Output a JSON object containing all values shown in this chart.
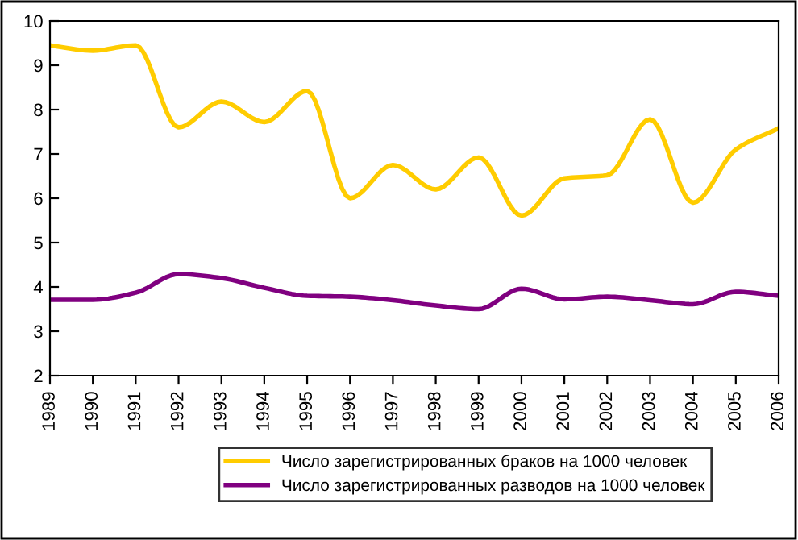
{
  "chart_data": {
    "type": "line",
    "x": [
      1989,
      1990,
      1991,
      1992,
      1993,
      1994,
      1995,
      1996,
      1997,
      1998,
      1999,
      2000,
      2001,
      2002,
      2003,
      2004,
      2005,
      2006
    ],
    "series": [
      {
        "name": "Число зарегистрированных браков на 1000 человек",
        "color": "#ffcc00",
        "values": [
          9.45,
          9.33,
          9.45,
          7.6,
          8.18,
          7.72,
          8.42,
          6.0,
          6.75,
          6.2,
          6.92,
          5.61,
          6.45,
          6.52,
          7.78,
          5.9,
          7.1,
          7.58
        ]
      },
      {
        "name": "Число зарегистрированных разводов на 1000 человек",
        "color": "#800080",
        "values": [
          3.71,
          3.71,
          3.87,
          4.29,
          4.2,
          3.98,
          3.8,
          3.78,
          3.7,
          3.58,
          3.5,
          3.96,
          3.72,
          3.78,
          3.7,
          3.61,
          3.89,
          3.8
        ]
      }
    ],
    "xlim": [
      1989,
      2006
    ],
    "xticks": [
      1989,
      1990,
      1991,
      1992,
      1993,
      1994,
      1995,
      1996,
      1997,
      1998,
      1999,
      2000,
      2001,
      2002,
      2003,
      2004,
      2005,
      2006
    ],
    "ylim": [
      2,
      10
    ],
    "yticks": [
      2,
      3,
      4,
      5,
      6,
      7,
      8,
      9,
      10
    ],
    "grid": false,
    "legend": "bottom",
    "marker": "none",
    "line_style": "solid"
  }
}
